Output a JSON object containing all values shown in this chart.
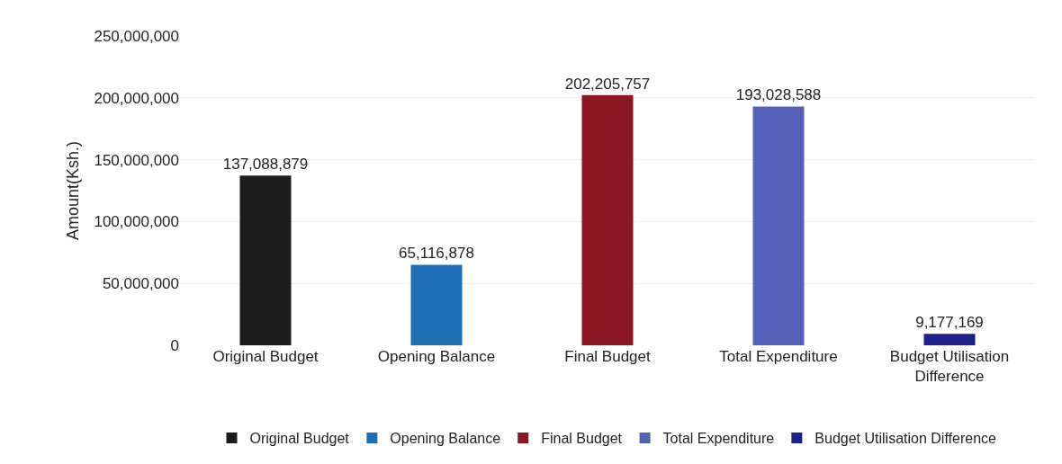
{
  "chart_data": {
    "type": "bar",
    "ylabel": "Amount(Ksh.)",
    "categories": [
      "Original Budget",
      "Opening Balance",
      "Final Budget",
      "Total Expenditure",
      "Budget Utilisation Difference"
    ],
    "series": [
      {
        "name": "Original Budget",
        "color": "#1c1c1c",
        "values": [
          137088879,
          null,
          null,
          null,
          null
        ],
        "value_labels": [
          "137,088,879",
          null,
          null,
          null,
          null
        ]
      },
      {
        "name": "Opening Balance",
        "color": "#1f6fb5",
        "values": [
          null,
          65116878,
          null,
          null,
          null
        ],
        "value_labels": [
          null,
          "65,116,878",
          null,
          null,
          null
        ]
      },
      {
        "name": "Final Budget",
        "color": "#8b1520",
        "values": [
          null,
          null,
          202205757,
          null,
          null
        ],
        "value_labels": [
          null,
          null,
          "202,205,757",
          null,
          null
        ]
      },
      {
        "name": "Total Expenditure",
        "color": "#5560b8",
        "values": [
          null,
          null,
          null,
          193028588,
          null
        ],
        "value_labels": [
          null,
          null,
          null,
          "193,028,588",
          null
        ]
      },
      {
        "name": "Budget Utilisation Difference",
        "color": "#1f1f8c",
        "values": [
          null,
          null,
          null,
          null,
          9177169
        ],
        "value_labels": [
          null,
          null,
          null,
          null,
          "9,177,169"
        ]
      }
    ],
    "ylim": [
      0,
      250000000
    ],
    "yticks": [
      {
        "value": 0,
        "label": "0"
      },
      {
        "value": 50000000,
        "label": "50,000,000"
      },
      {
        "value": 100000000,
        "label": "100,000,000"
      },
      {
        "value": 150000000,
        "label": "150,000,000"
      },
      {
        "value": 200000000,
        "label": "200,000,000"
      },
      {
        "value": 250000000,
        "label": "250,000,000"
      }
    ],
    "grid": "y",
    "legend": "bottom"
  }
}
